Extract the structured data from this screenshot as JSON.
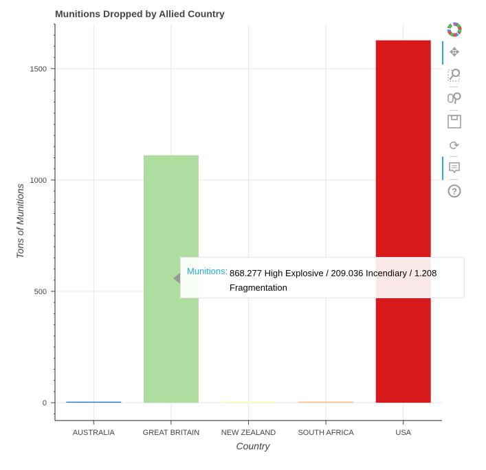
{
  "chart_data": {
    "type": "bar",
    "title": "Munitions Dropped by Allied Country",
    "xlabel": "Country",
    "ylabel": "Tons of Munitions",
    "categories": [
      "AUSTRALIA",
      "GREAT BRITAIN",
      "NEW ZEALAND",
      "SOUTH AFRICA",
      "USA"
    ],
    "values": [
      2,
      1111,
      7,
      3,
      1627
    ],
    "colors": [
      "#3182bd",
      "#addd9f",
      "#ffffcc",
      "#fdbe85",
      "#d7191c"
    ],
    "ylim": [
      -80,
      1700
    ],
    "yticks": [
      0,
      500,
      1000,
      1500
    ],
    "grid": true
  },
  "tooltip": {
    "label": "Munitions:",
    "value": "868.277 High Explosive / 209.036 Incendiary / 1.208 Fragmentation"
  },
  "toolbar": {
    "tools": [
      "bokeh-logo-icon",
      "pan-icon",
      "box-zoom-icon",
      "wheel-zoom-icon",
      "save-icon",
      "reset-icon",
      "hover-icon",
      "help-icon"
    ]
  }
}
